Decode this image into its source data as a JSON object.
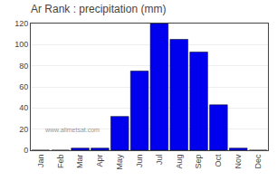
{
  "chart_data": {
    "type": "bar",
    "title": "Ar Rank : precipitation (mm)",
    "categories": [
      "Jan",
      "Feb",
      "Mar",
      "Apr",
      "May",
      "Jun",
      "Jul",
      "Aug",
      "Sep",
      "Oct",
      "Nov",
      "Dec"
    ],
    "values": [
      0,
      0,
      2,
      2,
      32,
      75,
      120,
      105,
      93,
      43,
      2,
      0
    ],
    "color": "#0000ee",
    "ylim": [
      0,
      120
    ],
    "yticks": [
      0,
      20,
      40,
      60,
      80,
      100,
      120
    ],
    "grid": true,
    "annotations": [
      "www.allmetsat.com"
    ]
  }
}
